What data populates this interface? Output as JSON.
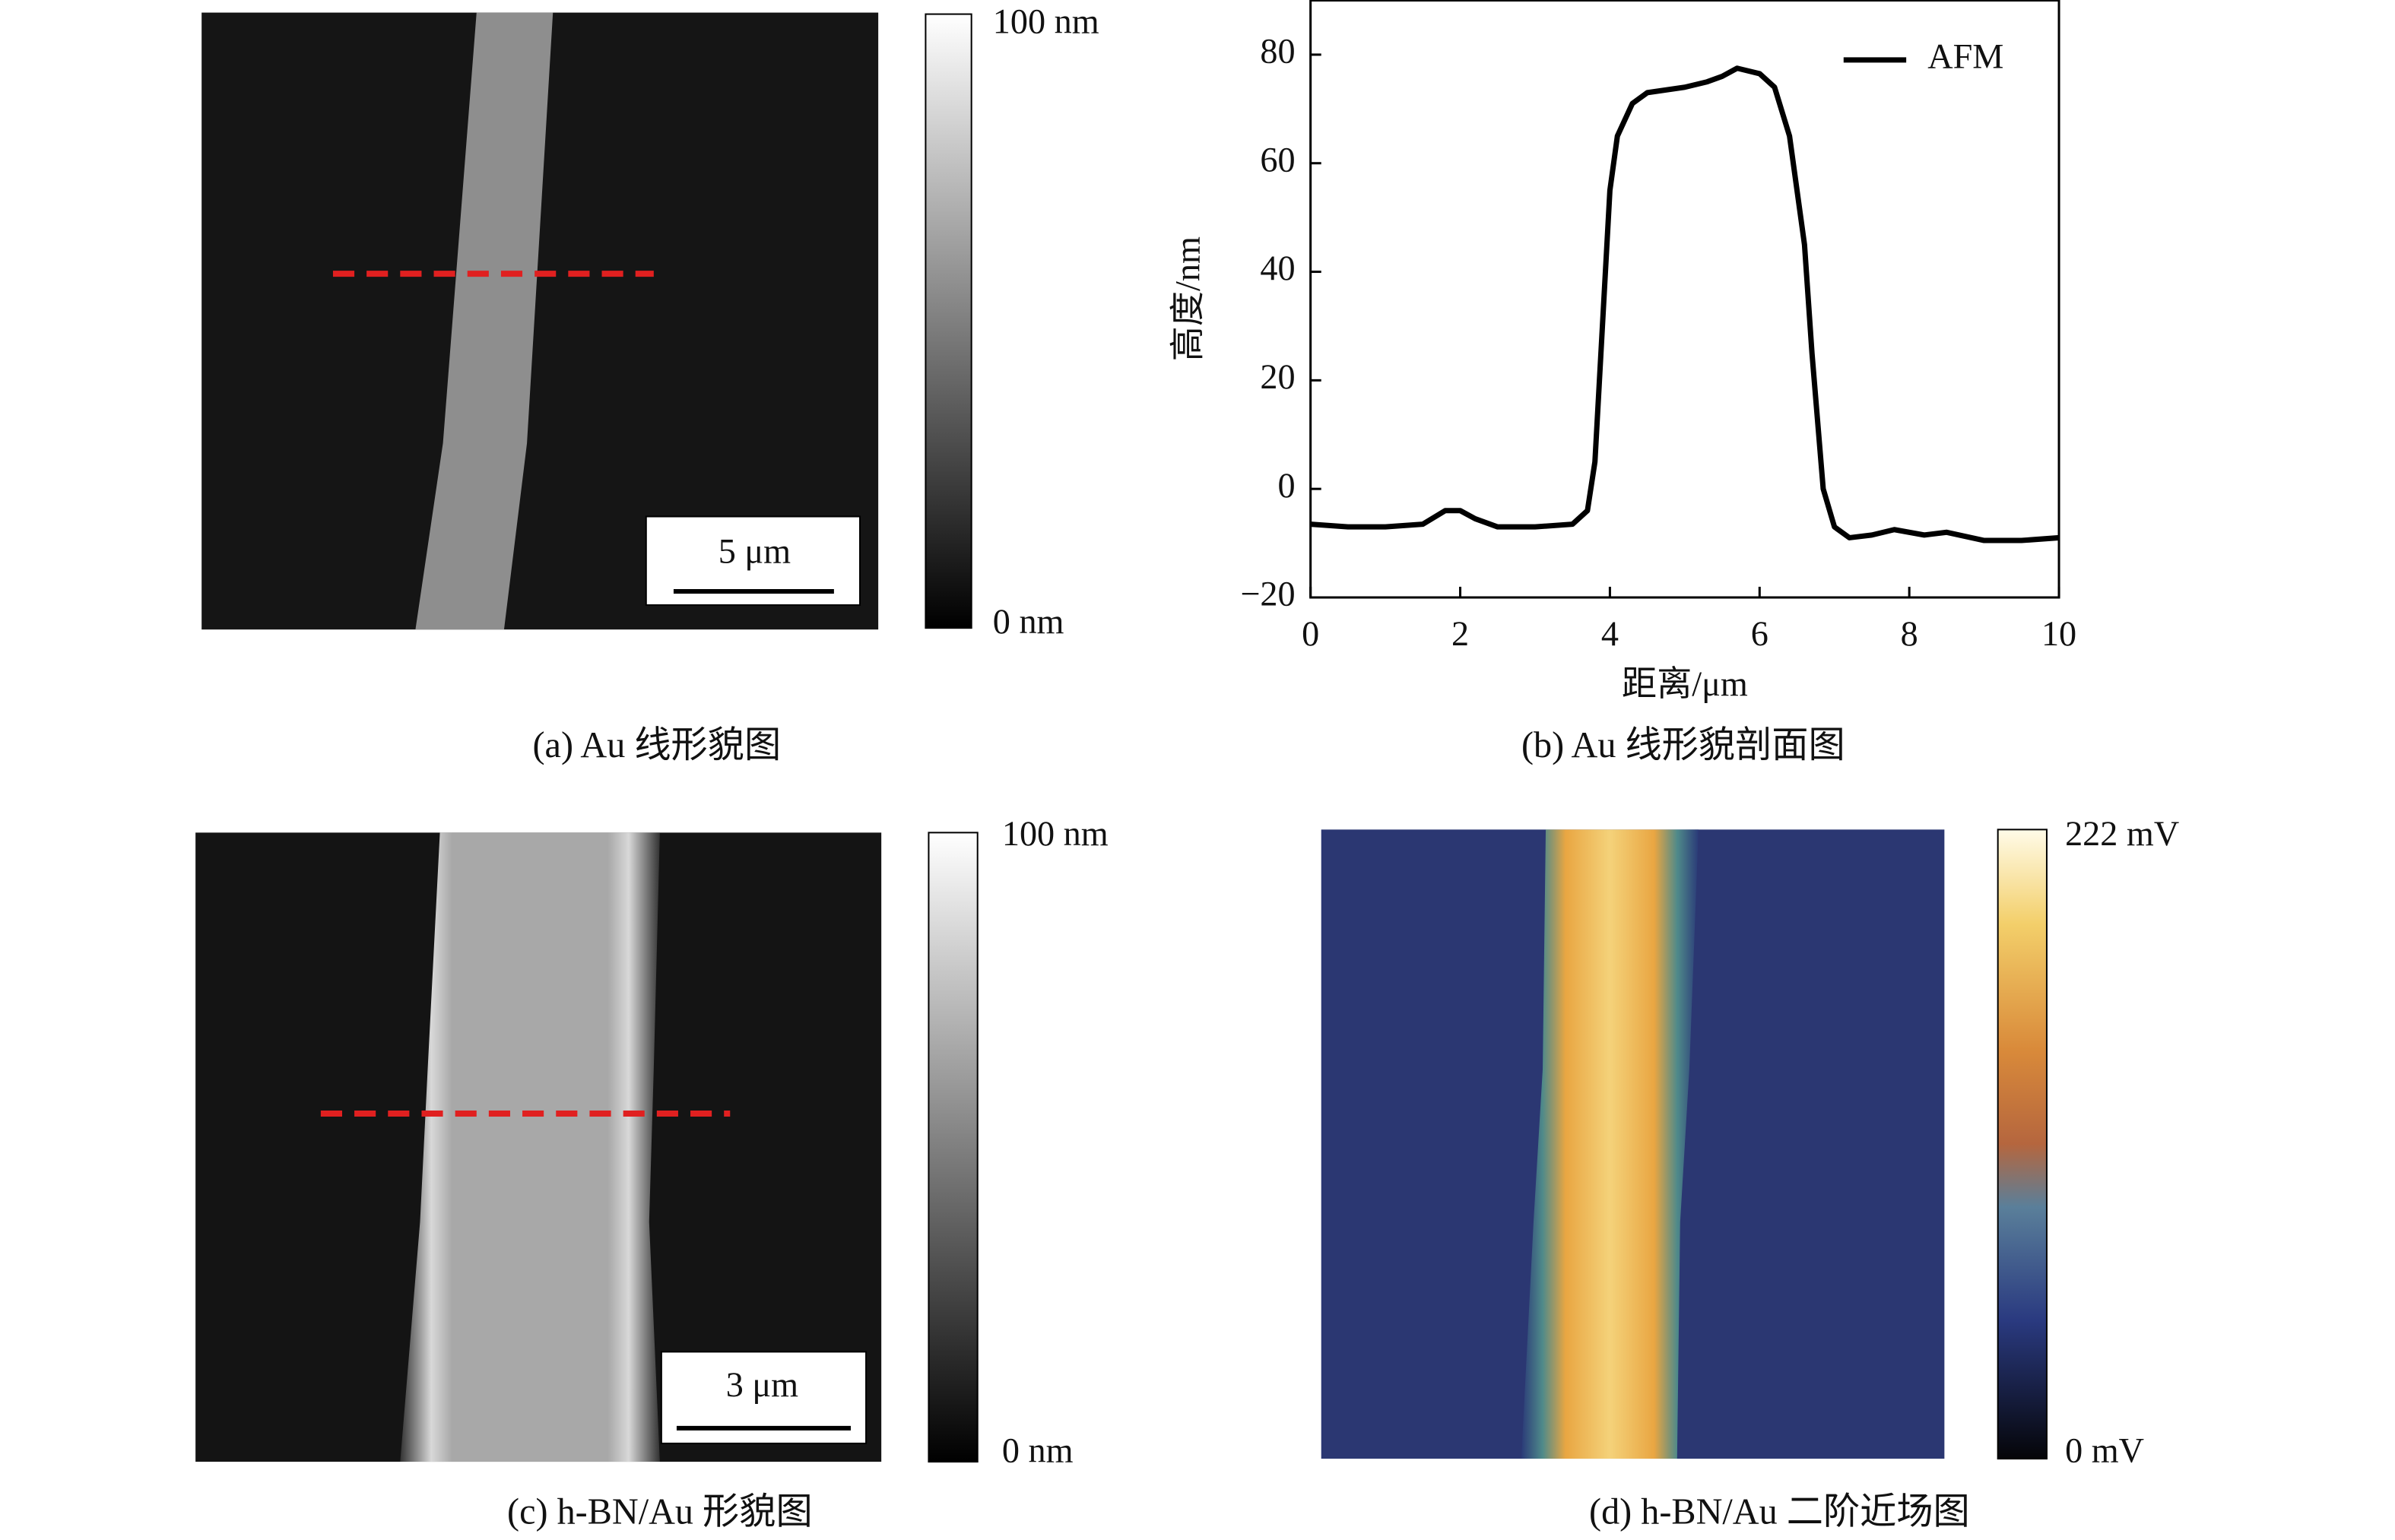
{
  "panels": [
    {
      "caption": "(a) Au 线形貌图",
      "colorbar_max": "100 nm",
      "colorbar_min": "0 nm",
      "scale_bar": "5 μm"
    },
    {
      "caption": "(b) Au 线形貌剖面图"
    },
    {
      "caption": "(c) h-BN/Au 形貌图",
      "colorbar_max": "100 nm",
      "colorbar_min": "0 nm",
      "scale_bar": "3 μm"
    },
    {
      "caption": "(d) h-BN/Au 二阶近场图",
      "colorbar_max": "222 mV",
      "colorbar_min": "0 mV"
    }
  ],
  "chart_data": {
    "type": "line",
    "xlabel": "距离/μm",
    "ylabel": "高度/nm",
    "xlim": [
      0,
      10
    ],
    "ylim": [
      -20,
      90
    ],
    "xticks": [
      0,
      2,
      4,
      6,
      8,
      10
    ],
    "yticks": [
      {
        "value": -20,
        "label": "−20"
      },
      0,
      20,
      40,
      60,
      80
    ],
    "legend": "upper right",
    "series": [
      {
        "name": "AFM",
        "color": "#000000",
        "x": [
          0,
          0.5,
          1,
          1.5,
          1.8,
          2.0,
          2.2,
          2.5,
          3,
          3.5,
          3.7,
          3.8,
          3.9,
          4.0,
          4.1,
          4.3,
          4.5,
          5,
          5.3,
          5.5,
          5.7,
          6,
          6.2,
          6.4,
          6.6,
          6.7,
          6.85,
          7.0,
          7.2,
          7.5,
          7.8,
          8.2,
          8.5,
          9,
          9.5,
          10
        ],
        "values": [
          -6.5,
          -7,
          -7,
          -6.5,
          -4,
          -4,
          -5.5,
          -7,
          -7,
          -6.5,
          -4,
          5,
          30,
          55,
          65,
          71,
          73,
          74,
          75,
          76,
          77.5,
          76.5,
          74,
          65,
          45,
          25,
          0,
          -7,
          -9,
          -8.5,
          -7.5,
          -8.5,
          -8,
          -9.5,
          -9.5,
          -9
        ]
      }
    ]
  }
}
